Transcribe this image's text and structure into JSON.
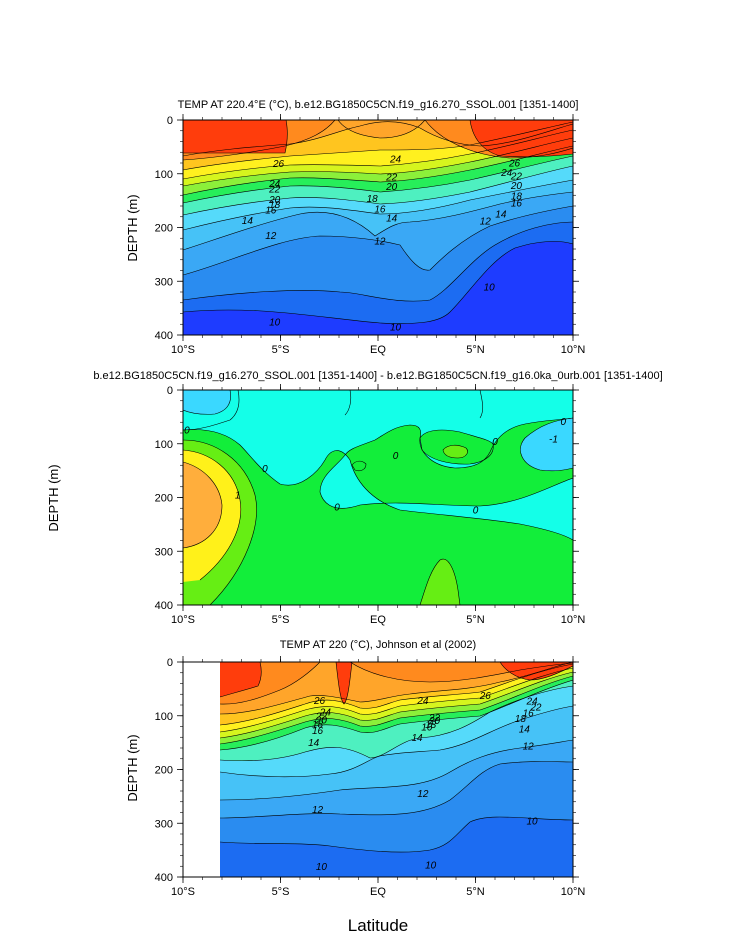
{
  "figure": {
    "xlabel": "Latitude"
  },
  "colors": {
    "temp": [
      "#1e3cff",
      "#1c6cf2",
      "#2a8cf0",
      "#3aa8f5",
      "#46c2f7",
      "#55dafa",
      "#4ef0c0",
      "#27ee5a",
      "#8cf03a",
      "#d6f51e",
      "#fff01f",
      "#ffc51f",
      "#ffa52a",
      "#ff8a1e",
      "#ff6a14",
      "#ff3d0c"
    ],
    "diff": [
      "#3ad8ff",
      "#14ffe8",
      "#12ee3a",
      "#66ee14",
      "#fff11a",
      "#ffae3c"
    ]
  },
  "chart_data": [
    {
      "type": "contour",
      "title": "TEMP AT 220.4°E (°C), b.e12.BG1850C5CN.f19_g16.270_SSOL.001 [1351-1400]",
      "ylabel": "DEPTH (m)",
      "xlabel": "",
      "x_ticks": [
        "10°S",
        "5°S",
        "EQ",
        "5°N",
        "10°N"
      ],
      "x_range": [
        -10,
        10
      ],
      "y_ticks": [
        "0",
        "100",
        "200",
        "300",
        "400"
      ],
      "y_range": [
        0,
        400
      ],
      "contour_levels": [
        10,
        12,
        14,
        16,
        18,
        20,
        22,
        24,
        26
      ],
      "labels": [
        {
          "text": "26",
          "lat": -5.1,
          "depth": 81
        },
        {
          "text": "24",
          "lat": -5.3,
          "depth": 118
        },
        {
          "text": "22",
          "lat": -5.3,
          "depth": 128
        },
        {
          "text": "20",
          "lat": -5.3,
          "depth": 148
        },
        {
          "text": "18",
          "lat": -5.3,
          "depth": 157
        },
        {
          "text": "16",
          "lat": -5.5,
          "depth": 167
        },
        {
          "text": "14",
          "lat": -6.7,
          "depth": 187
        },
        {
          "text": "12",
          "lat": -5.5,
          "depth": 215
        },
        {
          "text": "24",
          "lat": 0.9,
          "depth": 73
        },
        {
          "text": "22",
          "lat": 0.7,
          "depth": 106
        },
        {
          "text": "20",
          "lat": 0.7,
          "depth": 124
        },
        {
          "text": "18",
          "lat": -0.3,
          "depth": 146
        },
        {
          "text": "16",
          "lat": 0.1,
          "depth": 166
        },
        {
          "text": "14",
          "lat": 0.7,
          "depth": 182
        },
        {
          "text": "12",
          "lat": 0.1,
          "depth": 225
        },
        {
          "text": "26",
          "lat": 7.0,
          "depth": 80
        },
        {
          "text": "24",
          "lat": 6.6,
          "depth": 98
        },
        {
          "text": "22",
          "lat": 7.1,
          "depth": 104
        },
        {
          "text": "20",
          "lat": 7.1,
          "depth": 122
        },
        {
          "text": "18",
          "lat": 7.1,
          "depth": 141
        },
        {
          "text": "16",
          "lat": 7.1,
          "depth": 154
        },
        {
          "text": "14",
          "lat": 6.3,
          "depth": 175
        },
        {
          "text": "12",
          "lat": 5.5,
          "depth": 188
        },
        {
          "text": "10",
          "lat": 5.7,
          "depth": 311
        },
        {
          "text": "10",
          "lat": -5.3,
          "depth": 376
        },
        {
          "text": "10",
          "lat": 0.9,
          "depth": 385
        }
      ]
    },
    {
      "type": "contour",
      "title": "b.e12.BG1850C5CN.f19_g16.270_SSOL.001 [1351-1400] - b.e12.BG1850C5CN.f19_g16.0ka_0urb.001 [1351-1400]",
      "ylabel": "DEPTH (m)",
      "xlabel": "",
      "x_ticks": [
        "10°S",
        "5°S",
        "EQ",
        "5°N",
        "10°N"
      ],
      "x_range": [
        -10,
        10
      ],
      "y_ticks": [
        "0",
        "100",
        "200",
        "300",
        "400"
      ],
      "y_range": [
        0,
        400
      ],
      "contour_levels": [
        -1,
        0,
        1,
        2,
        3
      ],
      "labels": [
        {
          "text": "0",
          "lat": -9.8,
          "depth": 74
        },
        {
          "text": "0",
          "lat": -5.8,
          "depth": 146
        },
        {
          "text": "1",
          "lat": -7.2,
          "depth": 195
        },
        {
          "text": "0",
          "lat": -2.1,
          "depth": 218
        },
        {
          "text": "0",
          "lat": 0.9,
          "depth": 122
        },
        {
          "text": "0",
          "lat": 5.0,
          "depth": 223
        },
        {
          "text": "0",
          "lat": 6.0,
          "depth": 96
        },
        {
          "text": "0",
          "lat": 9.5,
          "depth": 59
        },
        {
          "text": "-1",
          "lat": 9.0,
          "depth": 91
        }
      ]
    },
    {
      "type": "contour",
      "title": "TEMP AT 220 (°C), Johnson et al (2002)",
      "ylabel": "DEPTH (m)",
      "xlabel": "Latitude",
      "x_ticks": [
        "10°S",
        "5°S",
        "EQ",
        "5°N",
        "10°N"
      ],
      "x_range": [
        -10,
        10
      ],
      "y_ticks": [
        "0",
        "100",
        "200",
        "300",
        "400"
      ],
      "y_range": [
        0,
        400
      ],
      "data_start_lat": -8,
      "contour_levels": [
        10,
        12,
        14,
        16,
        18,
        20,
        22,
        24,
        26
      ],
      "labels": [
        {
          "text": "26",
          "lat": -3.0,
          "depth": 72
        },
        {
          "text": "24",
          "lat": -2.7,
          "depth": 93
        },
        {
          "text": "22",
          "lat": -2.9,
          "depth": 100
        },
        {
          "text": "20",
          "lat": -2.9,
          "depth": 108
        },
        {
          "text": "18",
          "lat": -3.1,
          "depth": 115
        },
        {
          "text": "16",
          "lat": -3.1,
          "depth": 127
        },
        {
          "text": "14",
          "lat": -3.3,
          "depth": 150
        },
        {
          "text": "24",
          "lat": 2.3,
          "depth": 72
        },
        {
          "text": "22",
          "lat": 2.9,
          "depth": 103
        },
        {
          "text": "20",
          "lat": 2.9,
          "depth": 109
        },
        {
          "text": "18",
          "lat": 2.7,
          "depth": 116
        },
        {
          "text": "16",
          "lat": 2.5,
          "depth": 121
        },
        {
          "text": "14",
          "lat": 2.0,
          "depth": 140
        },
        {
          "text": "26",
          "lat": 5.5,
          "depth": 62
        },
        {
          "text": "24",
          "lat": 7.9,
          "depth": 73
        },
        {
          "text": "22",
          "lat": 8.1,
          "depth": 84
        },
        {
          "text": "18",
          "lat": 7.3,
          "depth": 105
        },
        {
          "text": "16",
          "lat": 7.7,
          "depth": 95
        },
        {
          "text": "14",
          "lat": 7.5,
          "depth": 125
        },
        {
          "text": "12",
          "lat": 7.7,
          "depth": 156
        },
        {
          "text": "12",
          "lat": -3.1,
          "depth": 274
        },
        {
          "text": "12",
          "lat": 2.3,
          "depth": 245
        },
        {
          "text": "10",
          "lat": 7.9,
          "depth": 296
        },
        {
          "text": "10",
          "lat": -2.9,
          "depth": 380
        },
        {
          "text": "10",
          "lat": 2.7,
          "depth": 378
        }
      ]
    }
  ]
}
